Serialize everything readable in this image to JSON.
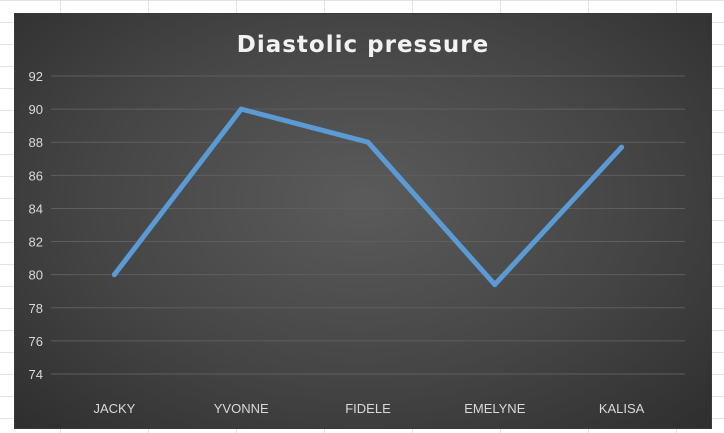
{
  "chart_data": {
    "type": "line",
    "title": "Diastolic pressure",
    "categories": [
      "JACKY",
      "YVONNE",
      "FIDELE",
      "EMELYNE",
      "KALISA"
    ],
    "series": [
      {
        "values": [
          80,
          90,
          88,
          79.4,
          87.7
        ],
        "color": "#5b9bd5"
      }
    ],
    "xlabel": "",
    "ylabel": "",
    "ylim": [
      74,
      92
    ],
    "yticks": [
      92,
      90,
      88,
      86,
      84,
      82,
      80,
      78,
      76,
      74
    ],
    "grid": true,
    "legend": "none"
  },
  "colors": {
    "plot_background": "#454545",
    "gridline": "#5e5e5e",
    "text": "#d9d9d9",
    "line": "#5b9bd5"
  }
}
